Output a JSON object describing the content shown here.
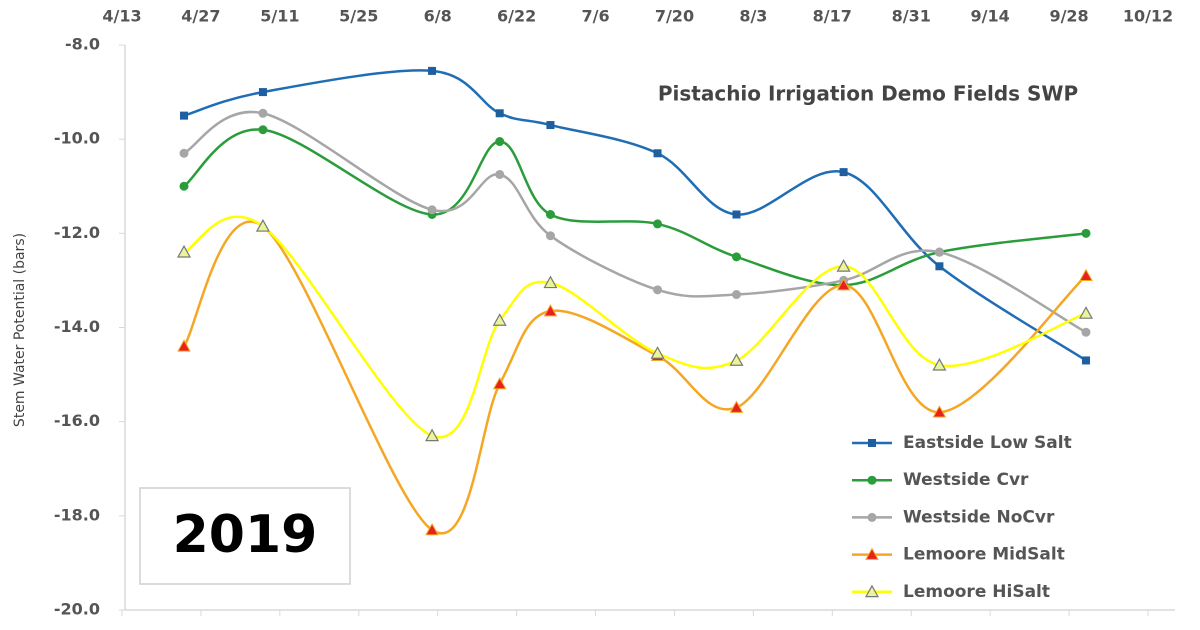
{
  "chart_data": {
    "type": "line",
    "title": "Pistachio Irrigation Demo Fields SWP",
    "annotation": "2019",
    "y_label": "Stem Water Potential (bars)",
    "x": [
      "4/24",
      "5/8",
      "6/7",
      "6/19",
      "6/28",
      "7/17",
      "7/31",
      "8/19",
      "9/5",
      "10/1"
    ],
    "xlim": [
      "4/13",
      "10/12"
    ],
    "xticks": [
      "4/13",
      "4/27",
      "5/11",
      "5/25",
      "6/8",
      "6/22",
      "7/6",
      "7/20",
      "8/3",
      "8/17",
      "8/31",
      "9/14",
      "9/28",
      "10/12"
    ],
    "ylim": [
      -20,
      -8
    ],
    "yticks": [
      {
        "value": -20,
        "label": "-20.0"
      },
      {
        "value": -18,
        "label": "-18.0"
      },
      {
        "value": -16,
        "label": "-16.0"
      },
      {
        "value": -14,
        "label": "-14.0"
      },
      {
        "value": -12,
        "label": "-12.0"
      },
      {
        "value": -10,
        "label": "-10.0"
      },
      {
        "value": -8,
        "label": "-8.0"
      }
    ],
    "grid": false,
    "legend": "lower right",
    "series": [
      {
        "name": "Eastside Low Salt",
        "color": "#1f6db5",
        "marker": "square",
        "values": [
          -9.5,
          -9.0,
          -8.55,
          -9.45,
          -9.7,
          -10.3,
          -11.6,
          -10.7,
          -12.7,
          -14.7
        ]
      },
      {
        "name": "Westside Cvr",
        "color": "#2a9d3a",
        "marker": "circle",
        "values": [
          -11.0,
          -9.8,
          -11.6,
          -10.05,
          -11.6,
          -11.8,
          -12.5,
          -13.1,
          -12.4,
          -12.0
        ]
      },
      {
        "name": "Westside NoCvr",
        "color": "#a6a6a6",
        "marker": "circle",
        "values": [
          -10.3,
          -9.45,
          -11.5,
          -10.75,
          -12.05,
          -13.2,
          -13.3,
          -13.0,
          -12.4,
          -14.1
        ]
      },
      {
        "name": "Lemoore MidSalt",
        "color": "#f5a623",
        "marker": "triangle-red",
        "values": [
          -14.4,
          -11.85,
          -18.3,
          -15.2,
          -13.65,
          -14.6,
          -15.7,
          -13.1,
          -15.8,
          -12.9
        ]
      },
      {
        "name": "Lemoore HiSalt",
        "color": "#ffff00",
        "marker": "triangle-light",
        "values": [
          -12.4,
          -11.85,
          -16.3,
          -13.85,
          -13.05,
          -14.55,
          -14.7,
          -12.7,
          -14.8,
          -13.7
        ]
      }
    ]
  }
}
